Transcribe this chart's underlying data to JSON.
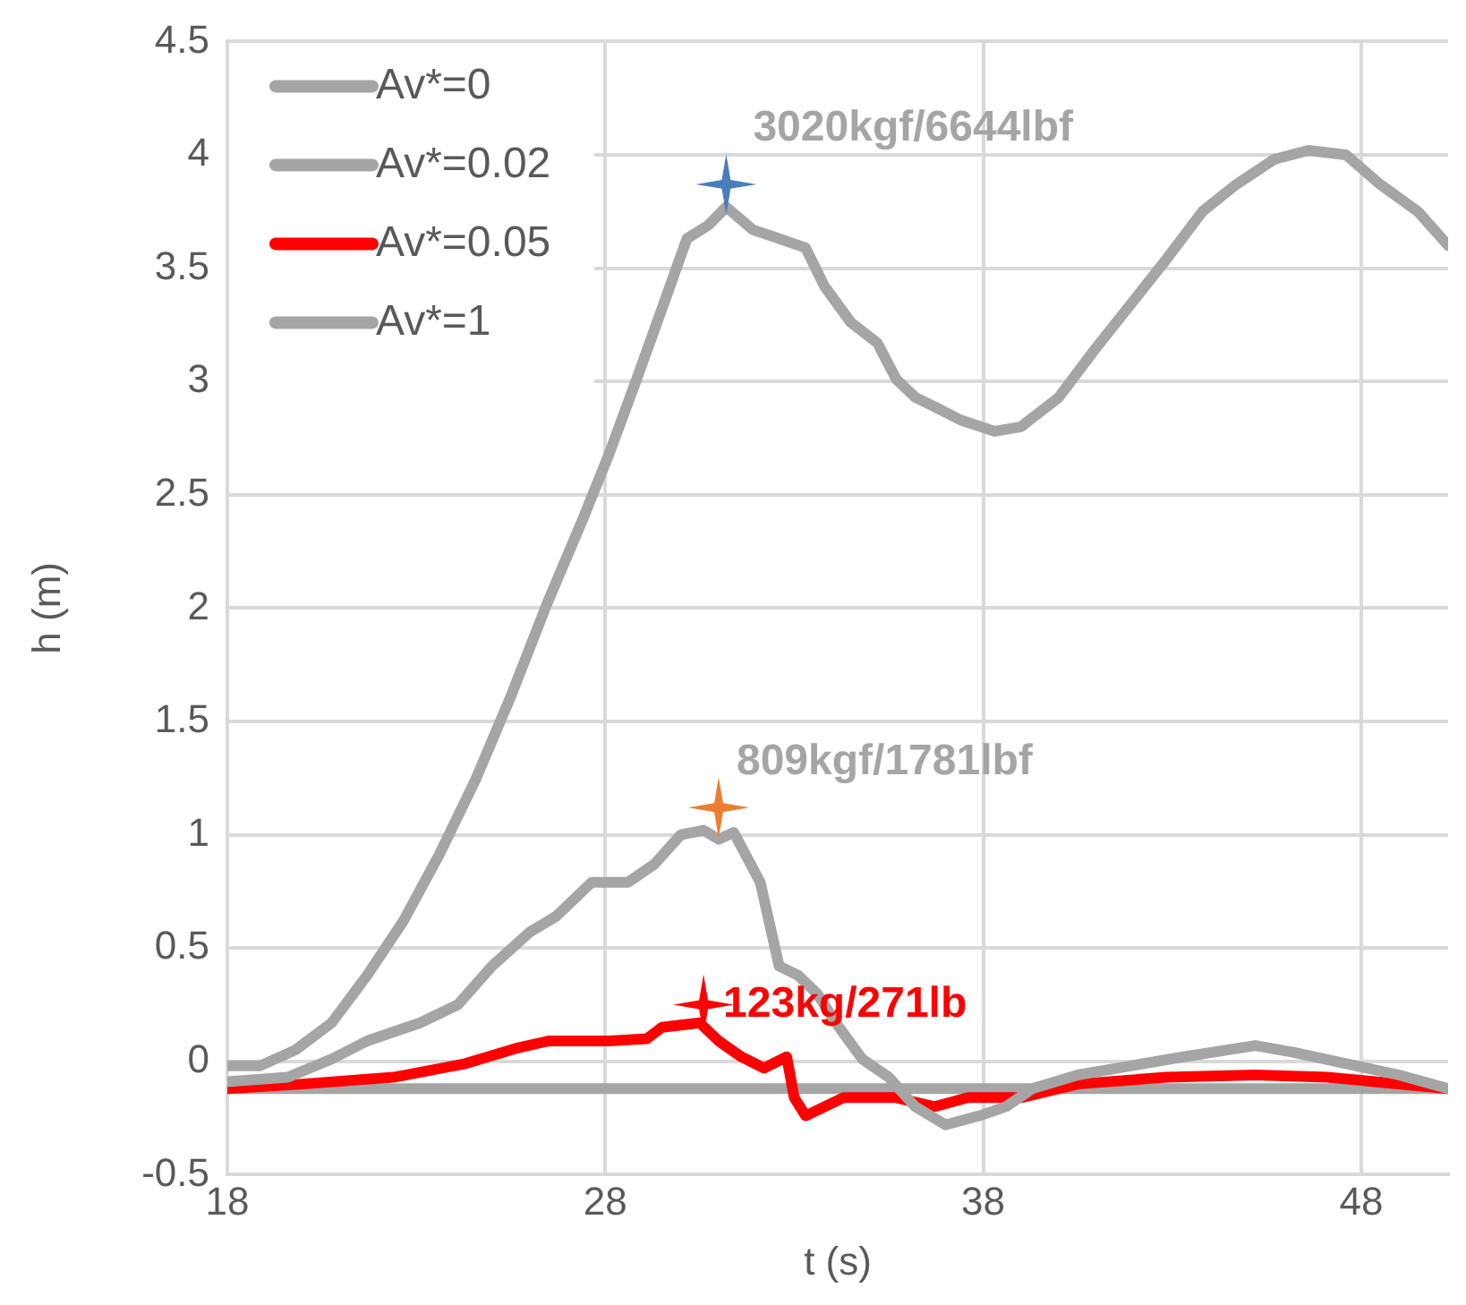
{
  "chart_data": {
    "type": "line",
    "xlabel": "t (s)",
    "ylabel": "h (m)",
    "xlim": [
      18,
      50.3
    ],
    "xticks": [
      18,
      28,
      38,
      48
    ],
    "ylim": [
      -0.5,
      4.5
    ],
    "yticks": [
      -0.5,
      0,
      0.5,
      1,
      1.5,
      2,
      2.5,
      3,
      3.5,
      4,
      4.5
    ],
    "grid": true,
    "legend": "top left",
    "marker": "none",
    "line_style": "solid",
    "series": [
      {
        "name": "Av*=0",
        "color": "#a5a5a5",
        "x": [
          18,
          18.86,
          19.8,
          20.76,
          21.7,
          22.66,
          23.6,
          24.56,
          25.5,
          26.46,
          27.4,
          28.1,
          28.83,
          29.54,
          30.16,
          30.73,
          31.2,
          31.9,
          32.6,
          33.3,
          33.8,
          34.5,
          35.2,
          35.7,
          36.2,
          36.7,
          37.4,
          38.3,
          39.0,
          40.0,
          40.9,
          41.9,
          42.85,
          43.8,
          44.7,
          45.7,
          46.6,
          47.6,
          48.5,
          49.5,
          50.3
        ],
        "values": [
          -0.02,
          -0.02,
          0.05,
          0.17,
          0.38,
          0.62,
          0.91,
          1.24,
          1.61,
          2.02,
          2.39,
          2.68,
          3.01,
          3.34,
          3.63,
          3.69,
          3.77,
          3.67,
          3.63,
          3.59,
          3.42,
          3.26,
          3.17,
          3.01,
          2.93,
          2.89,
          2.83,
          2.78,
          2.8,
          2.93,
          3.13,
          3.34,
          3.54,
          3.75,
          3.87,
          3.98,
          4.02,
          4.0,
          3.87,
          3.75,
          3.6
        ]
      },
      {
        "name": "Av*=0.02",
        "color": "#a5a5a5",
        "x": [
          18,
          19.6,
          20.76,
          21.7,
          23.1,
          24.1,
          25.0,
          26.0,
          26.7,
          27.64,
          28.6,
          29.3,
          30.0,
          30.6,
          31.0,
          31.4,
          32.1,
          32.6,
          33.1,
          33.6,
          34.1,
          34.8,
          35.5,
          36.2,
          37.0,
          37.9,
          38.6,
          39.3,
          40.5,
          41.9,
          43.3,
          45.2,
          46.2,
          47.6,
          49.0,
          50.3
        ],
        "values": [
          -0.09,
          -0.07,
          0.01,
          0.09,
          0.17,
          0.25,
          0.42,
          0.57,
          0.64,
          0.79,
          0.79,
          0.87,
          1.0,
          1.02,
          0.98,
          1.01,
          0.79,
          0.42,
          0.38,
          0.3,
          0.17,
          0.01,
          -0.07,
          -0.2,
          -0.28,
          -0.24,
          -0.2,
          -0.12,
          -0.06,
          -0.02,
          0.02,
          0.07,
          0.04,
          -0.01,
          -0.06,
          -0.12
        ]
      },
      {
        "name": "Av*=0.05",
        "color": "#ff0000",
        "x": [
          18,
          20.0,
          22.4,
          24.3,
          25.7,
          26.5,
          28.1,
          29.1,
          29.5,
          30.5,
          31.0,
          31.6,
          32.2,
          32.8,
          33.0,
          33.3,
          34.3,
          35.7,
          36.7,
          37.6,
          39.0,
          40.5,
          42.85,
          45.2,
          47.1,
          50.3
        ],
        "values": [
          -0.12,
          -0.1,
          -0.07,
          -0.01,
          0.06,
          0.09,
          0.09,
          0.1,
          0.15,
          0.17,
          0.09,
          0.02,
          -0.03,
          0.02,
          -0.16,
          -0.24,
          -0.16,
          -0.16,
          -0.2,
          -0.16,
          -0.16,
          -0.1,
          -0.07,
          -0.06,
          -0.07,
          -0.12
        ]
      },
      {
        "name": "Av*=1",
        "color": "#a5a5a5",
        "x": [
          18,
          50.3
        ],
        "values": [
          -0.12,
          -0.12
        ]
      },
      {
        "type": "scatter",
        "marker": "star",
        "color": "#4a7ebb",
        "x": [
          31.2
        ],
        "values": [
          3.87
        ]
      },
      {
        "type": "scatter",
        "marker": "star",
        "color": "#ed7d31",
        "x": [
          31.0
        ],
        "values": [
          1.12
        ]
      },
      {
        "type": "scatter",
        "marker": "star",
        "color": "#ff0000",
        "x": [
          30.6
        ],
        "values": [
          0.25
        ]
      }
    ],
    "annotations": [
      "3020kgf/6644lbf",
      "809kgf/1781lbf",
      "123kg/271lb"
    ]
  }
}
